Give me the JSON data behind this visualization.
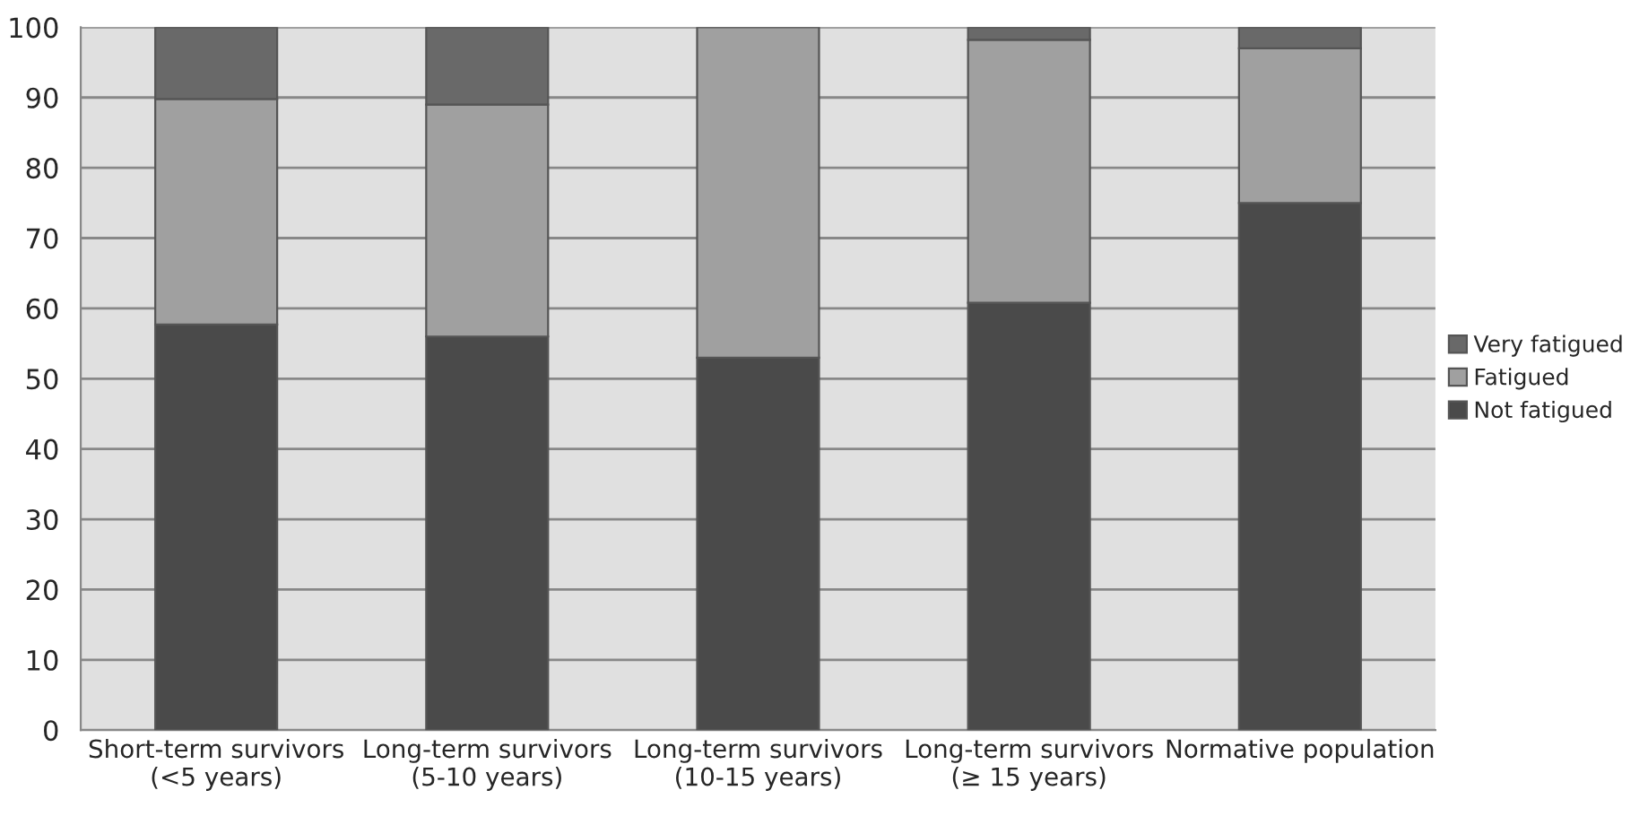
{
  "chart_data": {
    "type": "bar",
    "stacked": true,
    "categories": [
      "Short-term survivors\n(<5 years)",
      "Long-term survivors\n(5-10 years)",
      "Long-term survivors\n(10-15 years)",
      "Long-term survivors\n(≥ 15 years)",
      "Normative population"
    ],
    "series": [
      {
        "name": "Not fatigued",
        "color": "#4a4a4a",
        "values": [
          57.7,
          56,
          53,
          60.8,
          75
        ]
      },
      {
        "name": "Fatigued",
        "color": "#a0a0a0",
        "values": [
          32.1,
          33,
          47,
          37.4,
          22
        ]
      },
      {
        "name": "Very fatigued",
        "color": "#696969",
        "values": [
          10.2,
          11,
          null,
          1.8,
          3
        ]
      }
    ],
    "ylim": [
      0,
      100
    ],
    "yticks": [
      0,
      10,
      20,
      30,
      40,
      50,
      60,
      70,
      80,
      90,
      100
    ],
    "grid": "y",
    "legend": "right"
  }
}
